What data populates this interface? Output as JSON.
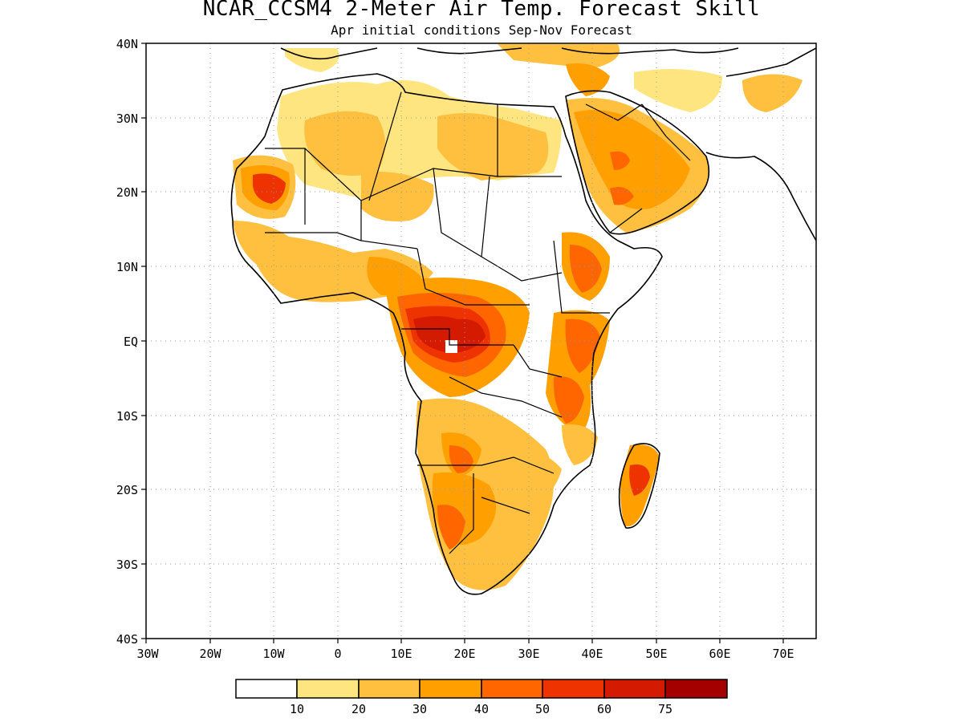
{
  "title": "NCAR_CCSM4 2-Meter Air Temp. Forecast Skill",
  "subtitle": "Apr initial conditions  Sep-Nov Forecast",
  "map": {
    "lat_ticks": [
      "40N",
      "30N",
      "20N",
      "10N",
      "EQ",
      "10S",
      "20S",
      "30S",
      "40S"
    ],
    "lon_ticks": [
      "30W",
      "20W",
      "10W",
      "0",
      "10E",
      "20E",
      "30E",
      "40E",
      "50E",
      "60E",
      "70E"
    ],
    "grid_lines": "dotted"
  },
  "colorbar": {
    "labels": [
      "10",
      "20",
      "30",
      "40",
      "50",
      "60",
      "75"
    ],
    "colors": [
      "#ffffff",
      "#ffe57f",
      "#ffbf3f",
      "#ff9f00",
      "#ff6600",
      "#ee3300",
      "#d41a00",
      "#a50000"
    ]
  }
}
